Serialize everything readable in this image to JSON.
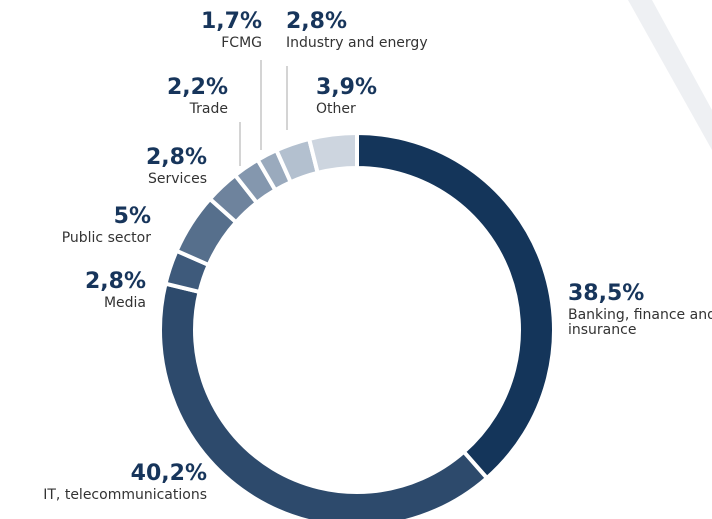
{
  "chart_data": {
    "type": "donut",
    "categories": [
      "Banking, finance and insurance",
      "IT, telecommunications",
      "Media",
      "Public sector",
      "Services",
      "Trade",
      "FCMG",
      "Industry and energy",
      "Other"
    ],
    "values": [
      38.5,
      40.2,
      2.8,
      5,
      2.8,
      2.2,
      1.7,
      2.8,
      3.9
    ],
    "value_labels": [
      "38,5%",
      "40,2%",
      "2,8%",
      "5%",
      "2,8%",
      "2,2%",
      "1,7%",
      "2,8%",
      "3,9%"
    ],
    "colors": [
      "#14355a",
      "#2d4a6c",
      "#3e5a7b",
      "#566f8c",
      "#6e839d",
      "#8497ae",
      "#9aaabd",
      "#b3c0cf",
      "#cdd5df"
    ]
  }
}
